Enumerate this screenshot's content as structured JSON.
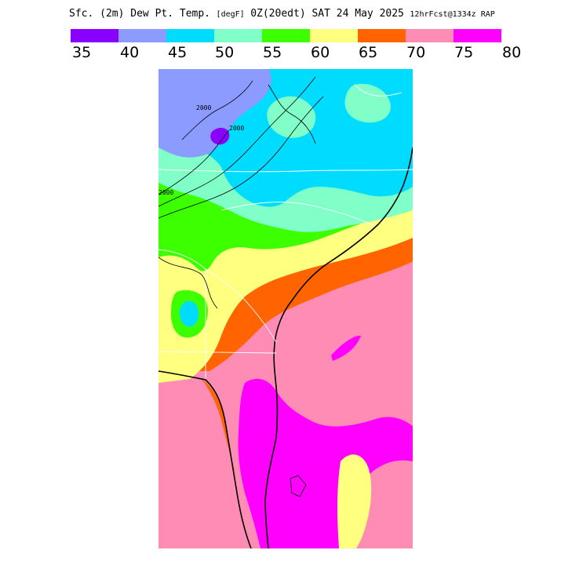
{
  "header": {
    "title": "Sfc. (2m) Dew Pt. Temp.",
    "units": "[degF]",
    "valid_time": "0Z(20edt) SAT 24 May 2025",
    "forecast": "12hrFcst@1334z RAP"
  },
  "legend": {
    "ticks": [
      "35",
      "40",
      "45",
      "50",
      "55",
      "60",
      "65",
      "70",
      "75",
      "80"
    ],
    "bins": [
      {
        "from": 35,
        "to": 40,
        "color": "#8a00ff"
      },
      {
        "from": 40,
        "to": 45,
        "color": "#8c9bff"
      },
      {
        "from": 45,
        "to": 50,
        "color": "#00dcff"
      },
      {
        "from": 50,
        "to": 55,
        "color": "#80ffc8"
      },
      {
        "from": 55,
        "to": 60,
        "color": "#3cff00"
      },
      {
        "from": 60,
        "to": 65,
        "color": "#ffff80"
      },
      {
        "from": 65,
        "to": 70,
        "color": "#ff6400"
      },
      {
        "from": 70,
        "to": 75,
        "color": "#ff8cb4"
      },
      {
        "from": 75,
        "to": 80,
        "color": "#ff00ff"
      }
    ]
  },
  "contours": {
    "labels": [
      "2000",
      "2000",
      "2000"
    ],
    "color": "#000000"
  },
  "map": {
    "boundary_color": "#ffffff",
    "coast_color": "#000000"
  }
}
